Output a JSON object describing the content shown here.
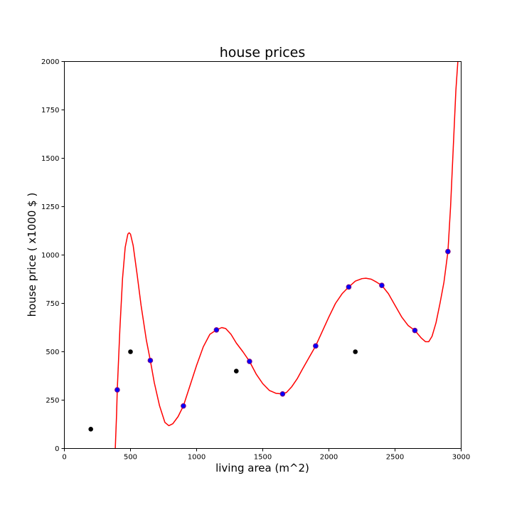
{
  "chart_data": {
    "type": "scatter",
    "title": "house prices",
    "xlabel": "living area (m^2)",
    "ylabel": "house price ( x1000 $ )",
    "xlim": [
      0,
      3000
    ],
    "ylim": [
      0,
      2000
    ],
    "x_ticks": [
      0,
      500,
      1000,
      1500,
      2000,
      2500,
      3000
    ],
    "y_ticks": [
      0,
      250,
      500,
      750,
      1000,
      1250,
      1500,
      1750,
      2000
    ],
    "grid": false,
    "series": [
      {
        "kind": "scatter",
        "color": "#0000ff",
        "edge_color": "#7f0080",
        "points": [
          [
            400,
            303
          ],
          [
            650,
            455
          ],
          [
            900,
            220
          ],
          [
            1150,
            613
          ],
          [
            1400,
            450
          ],
          [
            1650,
            282
          ],
          [
            1900,
            530
          ],
          [
            2150,
            835
          ],
          [
            2400,
            843
          ],
          [
            2650,
            610
          ],
          [
            2900,
            1018
          ]
        ]
      },
      {
        "kind": "scatter",
        "color": "#000000",
        "points": [
          [
            200,
            100
          ],
          [
            500,
            500
          ],
          [
            1300,
            400
          ],
          [
            2200,
            500
          ]
        ]
      },
      {
        "kind": "line",
        "color": "#ff0000",
        "points": [
          [
            385,
            0
          ],
          [
            395,
            180
          ],
          [
            400,
            303
          ],
          [
            420,
            620
          ],
          [
            440,
            880
          ],
          [
            460,
            1040
          ],
          [
            480,
            1108
          ],
          [
            490,
            1115
          ],
          [
            500,
            1108
          ],
          [
            520,
            1050
          ],
          [
            550,
            900
          ],
          [
            580,
            740
          ],
          [
            620,
            560
          ],
          [
            650,
            455
          ],
          [
            680,
            340
          ],
          [
            720,
            220
          ],
          [
            760,
            135
          ],
          [
            790,
            118
          ],
          [
            820,
            128
          ],
          [
            860,
            165
          ],
          [
            900,
            220
          ],
          [
            950,
            325
          ],
          [
            1000,
            430
          ],
          [
            1050,
            525
          ],
          [
            1100,
            590
          ],
          [
            1150,
            613
          ],
          [
            1190,
            625
          ],
          [
            1220,
            620
          ],
          [
            1260,
            590
          ],
          [
            1300,
            545
          ],
          [
            1350,
            500
          ],
          [
            1400,
            450
          ],
          [
            1450,
            385
          ],
          [
            1500,
            335
          ],
          [
            1550,
            300
          ],
          [
            1600,
            285
          ],
          [
            1650,
            282
          ],
          [
            1680,
            290
          ],
          [
            1720,
            320
          ],
          [
            1760,
            360
          ],
          [
            1800,
            410
          ],
          [
            1850,
            470
          ],
          [
            1900,
            530
          ],
          [
            1950,
            605
          ],
          [
            2000,
            680
          ],
          [
            2050,
            750
          ],
          [
            2100,
            800
          ],
          [
            2150,
            835
          ],
          [
            2200,
            865
          ],
          [
            2250,
            878
          ],
          [
            2280,
            880
          ],
          [
            2320,
            875
          ],
          [
            2360,
            860
          ],
          [
            2400,
            843
          ],
          [
            2450,
            800
          ],
          [
            2500,
            740
          ],
          [
            2550,
            680
          ],
          [
            2600,
            635
          ],
          [
            2650,
            610
          ],
          [
            2700,
            570
          ],
          [
            2730,
            552
          ],
          [
            2755,
            552
          ],
          [
            2780,
            580
          ],
          [
            2810,
            650
          ],
          [
            2840,
            750
          ],
          [
            2870,
            860
          ],
          [
            2900,
            1018
          ],
          [
            2920,
            1250
          ],
          [
            2940,
            1550
          ],
          [
            2960,
            1850
          ],
          [
            2975,
            2000
          ]
        ]
      }
    ]
  }
}
